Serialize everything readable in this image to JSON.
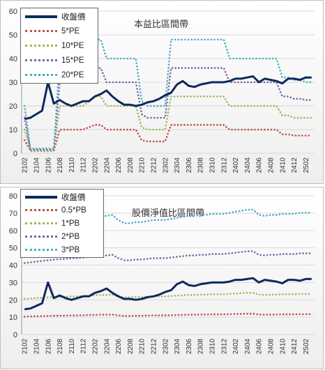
{
  "chart_data": [
    {
      "type": "line",
      "title": "本益比區間帶",
      "categories": [
        "2102",
        "2103",
        "2104",
        "2105",
        "2106",
        "2107",
        "2108",
        "2109",
        "2110",
        "2111",
        "2112",
        "2201",
        "2202",
        "2203",
        "2204",
        "2205",
        "2206",
        "2207",
        "2208",
        "2209",
        "2210",
        "2211",
        "2212",
        "2301",
        "2302",
        "2303",
        "2304",
        "2305",
        "2306",
        "2307",
        "2308",
        "2309",
        "2310",
        "2311",
        "2312",
        "2401",
        "2402",
        "2403",
        "2404",
        "2405",
        "2406",
        "2407",
        "2408",
        "2409",
        "2410",
        "2411",
        "2412",
        "2501",
        "2502",
        "2503"
      ],
      "xtick_labels": [
        "2102",
        "2104",
        "2106",
        "2108",
        "2110",
        "2112",
        "2202",
        "2204",
        "2206",
        "2208",
        "2210",
        "2212",
        "2302",
        "2304",
        "2306",
        "2308",
        "2310",
        "2312",
        "2402",
        "2404",
        "2406",
        "2408",
        "2410",
        "2412",
        "2502"
      ],
      "ylim": [
        0,
        60
      ],
      "yticks": [
        0,
        10,
        20,
        30,
        40,
        50,
        60
      ],
      "grid": true,
      "legend_position": "top-left",
      "series": [
        {
          "name": "收盤價",
          "color": "#0d2a5c",
          "style": "solid",
          "values": [
            14.5,
            15,
            16.5,
            18,
            30,
            21,
            22.5,
            21,
            20,
            21,
            22,
            22,
            24,
            25,
            26.5,
            24,
            22,
            20.5,
            20.5,
            20,
            20.5,
            21.5,
            22,
            23,
            24.5,
            25.5,
            29,
            30.5,
            28.5,
            28,
            29,
            29.5,
            30,
            30,
            30,
            30.5,
            31.5,
            31.5,
            32,
            32.5,
            30,
            31.5,
            31,
            30.5,
            29.5,
            31.5,
            31.5,
            31,
            32,
            32
          ]
        },
        {
          "name": "5*PE",
          "color": "#c0504d",
          "style": "dotted",
          "values": [
            5.5,
            1,
            1,
            1,
            1,
            1,
            10,
            10,
            10,
            10,
            10,
            11,
            12,
            12,
            10,
            10,
            10,
            10,
            10,
            10,
            5.5,
            5,
            5,
            5,
            5,
            12,
            12,
            12,
            12,
            12,
            12,
            12,
            12,
            12,
            12,
            10,
            10,
            10,
            10,
            10,
            10,
            10,
            10,
            10,
            8,
            8,
            7.5,
            7.5,
            7.5,
            7.5
          ]
        },
        {
          "name": "10*PE",
          "color": "#9bbb59",
          "style": "dotted",
          "values": [
            10,
            1,
            1,
            1,
            1,
            1,
            20,
            20,
            20,
            20,
            20,
            22,
            24,
            24,
            20,
            20,
            20,
            20,
            20,
            20,
            11,
            10,
            10,
            10,
            10,
            24,
            24,
            24,
            24,
            24,
            24,
            24,
            24,
            24,
            24,
            20,
            20,
            20,
            20,
            20,
            20,
            20,
            20,
            20,
            16,
            16,
            15,
            15,
            15,
            15
          ]
        },
        {
          "name": "15*PE",
          "color": "#8064a2",
          "style": "dotted",
          "values": [
            15,
            1.5,
            1.5,
            1.5,
            1.5,
            1.5,
            30,
            30,
            30,
            30,
            30,
            33,
            36,
            36,
            30,
            30,
            30,
            30,
            30,
            30,
            16.5,
            15,
            15,
            15,
            15,
            36,
            36,
            36,
            36,
            36,
            36,
            36,
            36,
            36,
            36,
            30,
            30,
            30,
            30,
            30,
            30,
            30,
            30,
            30,
            24,
            24,
            23,
            23,
            22.5,
            22.5
          ]
        },
        {
          "name": "20*PE",
          "color": "#4bacc6",
          "style": "dotted",
          "values": [
            20,
            2,
            2,
            2,
            2,
            2,
            40,
            40,
            40,
            40,
            40,
            44,
            48,
            48,
            40,
            40,
            40,
            40,
            40,
            40,
            22,
            20,
            20,
            20,
            20,
            48,
            48,
            48,
            48,
            48,
            48,
            48,
            48,
            48,
            48,
            40,
            40,
            40,
            40,
            40,
            40,
            40,
            40,
            40,
            32,
            32,
            31,
            31,
            30,
            30
          ]
        }
      ]
    },
    {
      "type": "line",
      "title": "股價淨值比區間帶",
      "categories": [
        "2102",
        "2103",
        "2104",
        "2105",
        "2106",
        "2107",
        "2108",
        "2109",
        "2110",
        "2111",
        "2112",
        "2201",
        "2202",
        "2203",
        "2204",
        "2205",
        "2206",
        "2207",
        "2208",
        "2209",
        "2210",
        "2211",
        "2212",
        "2301",
        "2302",
        "2303",
        "2304",
        "2305",
        "2306",
        "2307",
        "2308",
        "2309",
        "2310",
        "2311",
        "2312",
        "2401",
        "2402",
        "2403",
        "2404",
        "2405",
        "2406",
        "2407",
        "2408",
        "2409",
        "2410",
        "2411",
        "2412",
        "2501",
        "2502",
        "2503"
      ],
      "xtick_labels": [
        "2102",
        "2104",
        "2106",
        "2108",
        "2110",
        "2112",
        "2202",
        "2204",
        "2206",
        "2208",
        "2210",
        "2212",
        "2302",
        "2304",
        "2306",
        "2308",
        "2310",
        "2312",
        "2402",
        "2404",
        "2406",
        "2408",
        "2410",
        "2412",
        "2502"
      ],
      "ylim": [
        0,
        80
      ],
      "yticks": [
        0,
        10,
        20,
        30,
        40,
        50,
        60,
        70,
        80
      ],
      "grid": true,
      "legend_position": "top-left",
      "series": [
        {
          "name": "收盤價",
          "color": "#0d2a5c",
          "style": "solid",
          "values": [
            14.5,
            15,
            16.5,
            18,
            30,
            21,
            22.5,
            21,
            20,
            21,
            22,
            22,
            24,
            25,
            26.5,
            24,
            22,
            20.5,
            20.5,
            20,
            20.5,
            21.5,
            22,
            23,
            24.5,
            25.5,
            29,
            30.5,
            28.5,
            28,
            29,
            29.5,
            30,
            30,
            30,
            30.5,
            31.5,
            31.5,
            32,
            32.5,
            30,
            31.5,
            31,
            30.5,
            29.5,
            31.5,
            31.5,
            31,
            32,
            32
          ]
        },
        {
          "name": "0.5*PB",
          "color": "#c0504d",
          "style": "dotted",
          "values": [
            10.3,
            10.4,
            10.5,
            10.6,
            10.7,
            10.8,
            10.8,
            10.9,
            11,
            11,
            11.1,
            11.2,
            11.3,
            11.4,
            11.4,
            11.5,
            11,
            10.7,
            10.7,
            10.8,
            10.8,
            10.9,
            11,
            11,
            11,
            11.1,
            11.2,
            11.3,
            11.4,
            11.4,
            11.5,
            11.5,
            11.6,
            11.6,
            11.6,
            11.7,
            11.8,
            11.9,
            12,
            12,
            11.5,
            11.4,
            11.5,
            11.5,
            11.6,
            11.6,
            11.6,
            11.7,
            11.7,
            11.7
          ]
        },
        {
          "name": "1*PB",
          "color": "#9bbb59",
          "style": "dotted",
          "values": [
            20.6,
            20.8,
            21,
            21.2,
            21.4,
            21.6,
            21.7,
            21.8,
            22,
            22,
            22.2,
            22.4,
            22.6,
            22.8,
            22.8,
            23,
            22,
            21.4,
            21.4,
            21.6,
            21.6,
            21.8,
            22,
            22,
            22,
            22.2,
            22.4,
            22.6,
            22.8,
            22.8,
            23,
            23,
            23.2,
            23.2,
            23.2,
            23.4,
            23.6,
            23.8,
            24,
            24,
            23,
            22.8,
            23,
            23,
            23.2,
            23.2,
            23.2,
            23.4,
            23.4,
            23.4
          ]
        },
        {
          "name": "2*PB",
          "color": "#8064a2",
          "style": "dotted",
          "values": [
            41.2,
            41.6,
            42,
            42.4,
            42.8,
            43.2,
            43.4,
            43.6,
            44,
            44,
            44.4,
            44.8,
            45.2,
            45.6,
            45.6,
            46,
            44,
            42.8,
            42.8,
            43.2,
            43.2,
            43.6,
            44,
            44,
            44,
            44.4,
            44.8,
            45.2,
            45.6,
            45.6,
            46,
            46,
            46.4,
            46.4,
            46.4,
            46.8,
            47.2,
            47.6,
            48,
            48,
            46,
            45.6,
            46,
            46,
            46.4,
            46.4,
            46.4,
            46.8,
            46.8,
            46.8
          ]
        },
        {
          "name": "3*PB",
          "color": "#4bacc6",
          "style": "dotted",
          "values": [
            61.8,
            62.4,
            63,
            63.6,
            64.2,
            64.8,
            65.1,
            65.4,
            66,
            66,
            66.6,
            67.2,
            67.8,
            68.4,
            68.4,
            69,
            66,
            64.2,
            64.2,
            64.8,
            64.8,
            65.4,
            66,
            66,
            66,
            66.6,
            67.2,
            67.8,
            68.4,
            68.4,
            69,
            69,
            69.6,
            69.6,
            69.6,
            70.2,
            70.8,
            71.4,
            72,
            72,
            69,
            68.4,
            69,
            69,
            69.6,
            69.6,
            69.6,
            70.2,
            70.2,
            70.2
          ]
        }
      ]
    }
  ]
}
